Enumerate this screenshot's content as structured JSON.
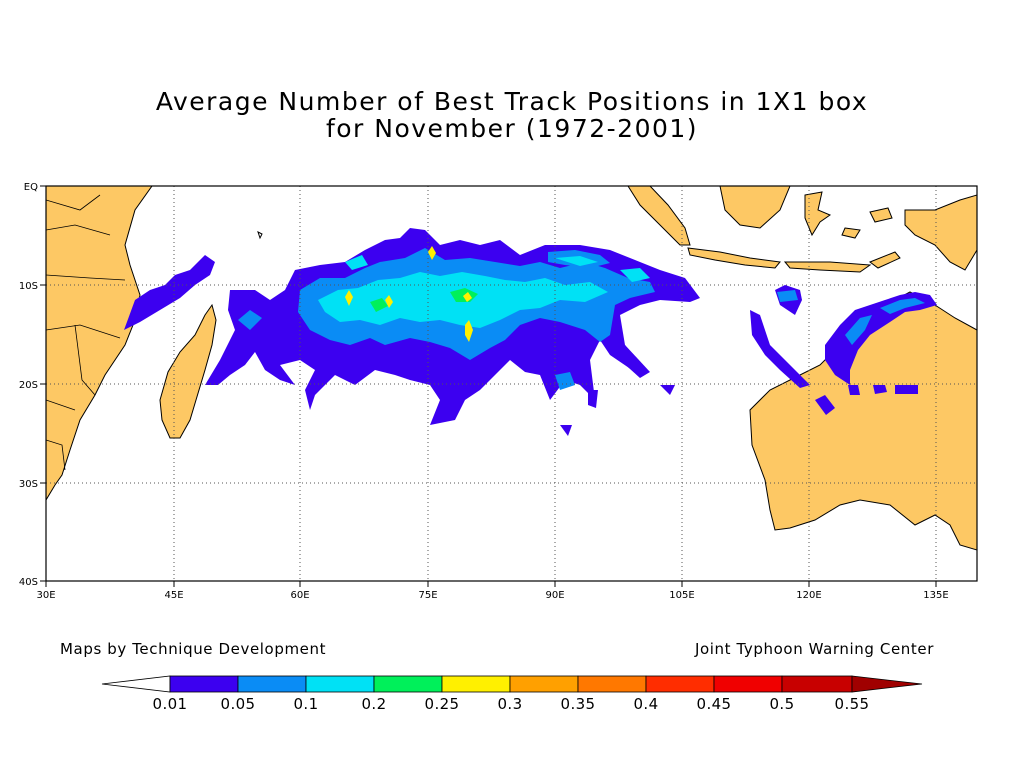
{
  "title": {
    "line1": "Average Number of Best Track Positions in 1X1 box",
    "line2": "for November (1972-2001)"
  },
  "map": {
    "lat_labels": [
      "EQ",
      "10S",
      "20S",
      "30S",
      "40S"
    ],
    "lon_labels": [
      "30E",
      "45E",
      "60E",
      "75E",
      "90E",
      "105E",
      "120E",
      "135E"
    ],
    "land_color": "#fdc864",
    "ocean_color": "#ffffff"
  },
  "credits": {
    "left": "Maps by Technique Development",
    "right": "Joint Typhoon Warning Center"
  },
  "colorbar": {
    "labels": [
      "0.01",
      "0.05",
      "0.1",
      "0.2",
      "0.25",
      "0.3",
      "0.35",
      "0.4",
      "0.45",
      "0.5",
      "0.55"
    ],
    "colors": [
      "#ffffff",
      "#3c00f0",
      "#0a8cf5",
      "#00e1f5",
      "#00f05a",
      "#fff000",
      "#ffa000",
      "#ff7800",
      "#ff2d00",
      "#f00000",
      "#c80000",
      "#a00000"
    ]
  }
}
